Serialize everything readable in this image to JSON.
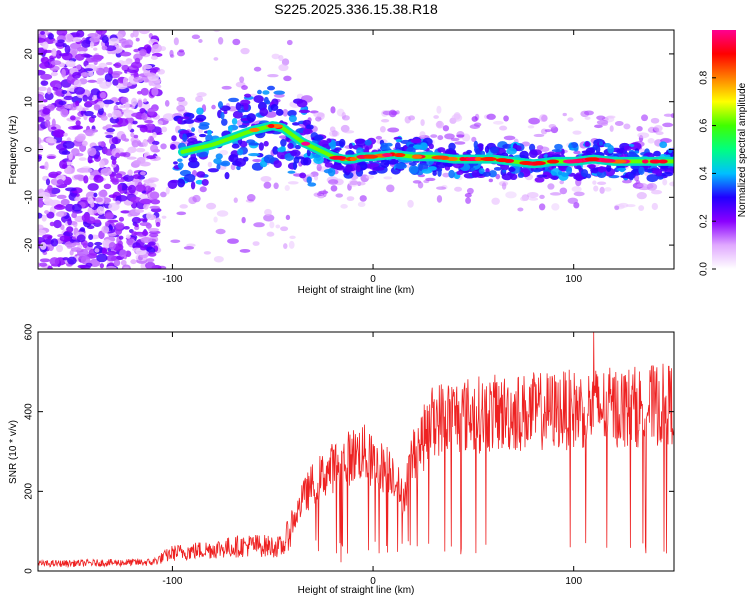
{
  "title": "S225.2025.336.15.38.R18",
  "chart_data": [
    {
      "type": "heatmap",
      "xlabel": "Height of straight line (km)",
      "ylabel": "Frequency (Hz)",
      "xlim": [
        -167,
        150
      ],
      "ylim": [
        -25,
        25
      ],
      "xticks": [
        -100,
        0,
        100
      ],
      "yticks": [
        -20,
        -10,
        0,
        10,
        20
      ],
      "colorbar": {
        "label": "Normalized spectral amplitude",
        "range": [
          0,
          1
        ],
        "ticks": [
          0.0,
          0.2,
          0.4,
          0.6,
          0.8
        ],
        "colormap": [
          "#ffffff",
          "#e0a8ff",
          "#8a00ff",
          "#2000ff",
          "#00c0ff",
          "#00ff80",
          "#40ff00",
          "#ffff00",
          "#ff8000",
          "#ff0000",
          "#ff0090"
        ]
      },
      "ridge": {
        "x": [
          -95,
          -80,
          -70,
          -60,
          -50,
          -45,
          -40,
          -35,
          -30,
          -25,
          -20,
          -15,
          -10,
          -5,
          0,
          10,
          20,
          30,
          40,
          50,
          60,
          70,
          80,
          90,
          100,
          110,
          120,
          130,
          140,
          150
        ],
        "y": [
          -0.5,
          1,
          2.5,
          4,
          5,
          4.5,
          3,
          1.5,
          0.5,
          -0.5,
          -1.5,
          -2,
          -2,
          -1.5,
          -1.5,
          -1,
          -1.5,
          -1.5,
          -2,
          -2,
          -2,
          -2.5,
          -3,
          -2.5,
          -2.5,
          -2,
          -2.5,
          -2.5,
          -2.5,
          -2.5
        ]
      }
    },
    {
      "type": "line",
      "xlabel": "Height of straight line (km)",
      "ylabel": "SNR (10 * v/v)",
      "xlim": [
        -167,
        150
      ],
      "ylim": [
        0,
        600
      ],
      "xticks": [
        -100,
        0,
        100
      ],
      "yticks": [
        0,
        200,
        400,
        600
      ],
      "line_color": "#ee2222",
      "envelope": {
        "x": [
          -167,
          -140,
          -110,
          -100,
          -80,
          -60,
          -45,
          -35,
          -30,
          -20,
          -10,
          -5,
          0,
          10,
          15,
          20,
          25,
          30,
          40,
          60,
          80,
          100,
          110,
          120,
          140,
          150
        ],
        "y": [
          18,
          20,
          22,
          45,
          55,
          65,
          60,
          180,
          220,
          260,
          290,
          300,
          270,
          250,
          180,
          300,
          330,
          380,
          390,
          395,
          400,
          405,
          410,
          410,
          415,
          420
        ]
      },
      "peak": {
        "x": 110,
        "y": 600
      }
    }
  ]
}
